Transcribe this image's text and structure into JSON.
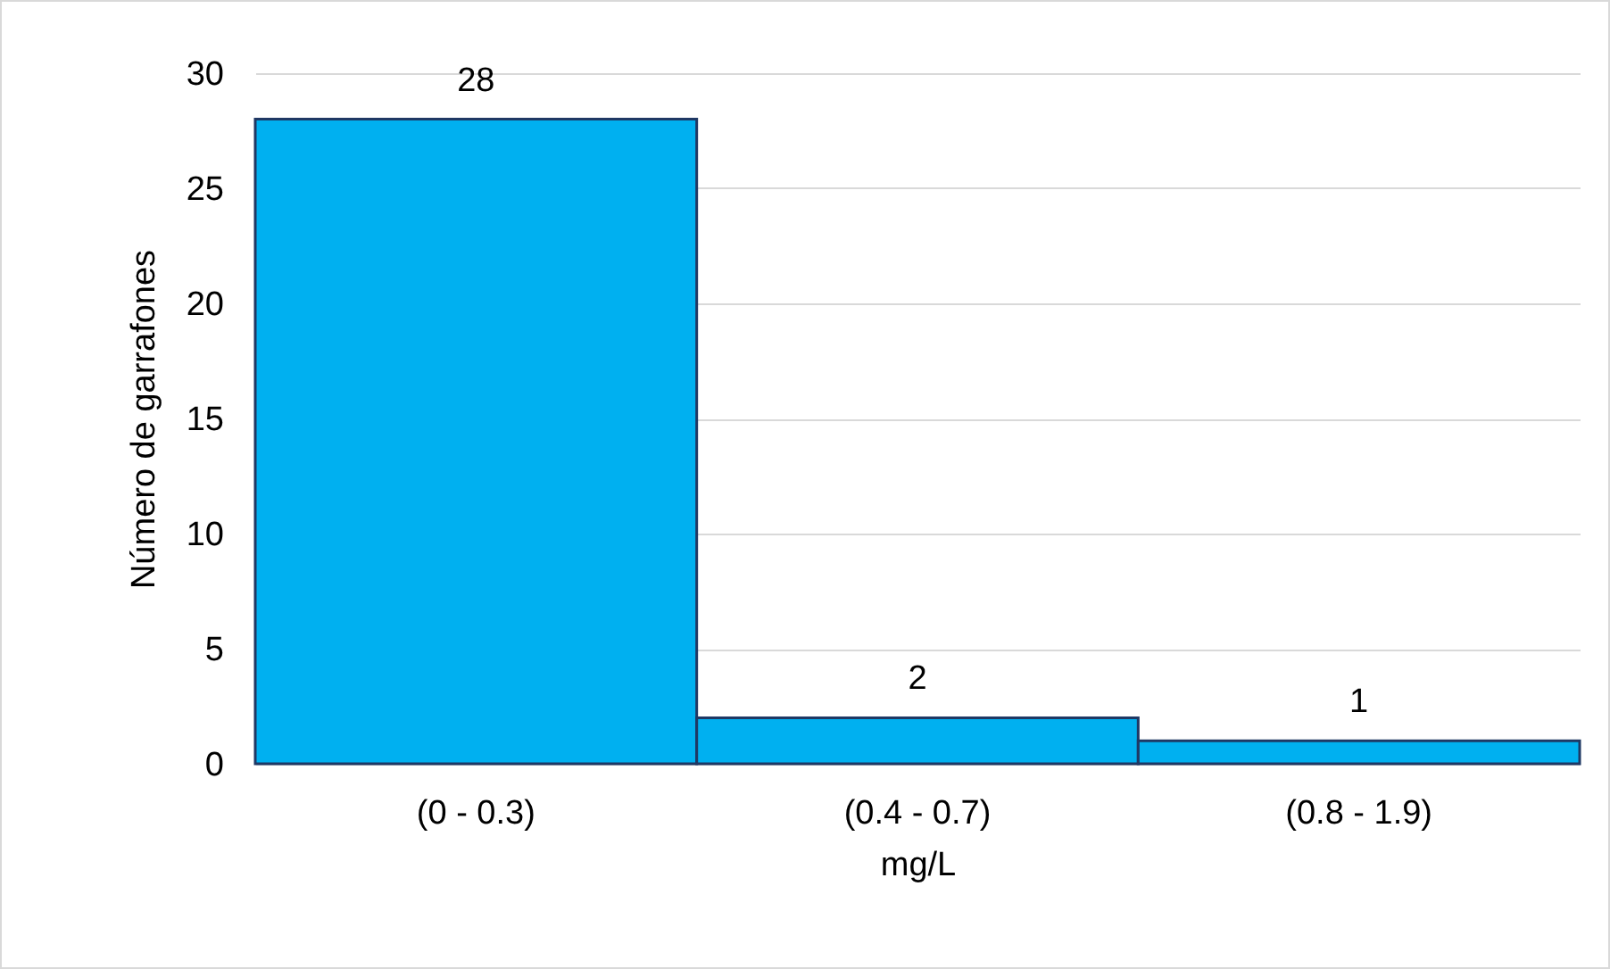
{
  "chart_data": {
    "type": "bar",
    "xlabel": "mg/L",
    "ylabel": "Número de garrafones",
    "categories": [
      "(0 - 0.3)",
      "(0.4 - 0.7)",
      "(0.8 - 1.9)"
    ],
    "values": [
      28,
      2,
      1
    ],
    "color": "#00b0f0",
    "ylim": [
      0,
      30
    ],
    "yticks": [
      0,
      5,
      10,
      15,
      20,
      25,
      30
    ],
    "grid": "y",
    "data_labels": true
  }
}
